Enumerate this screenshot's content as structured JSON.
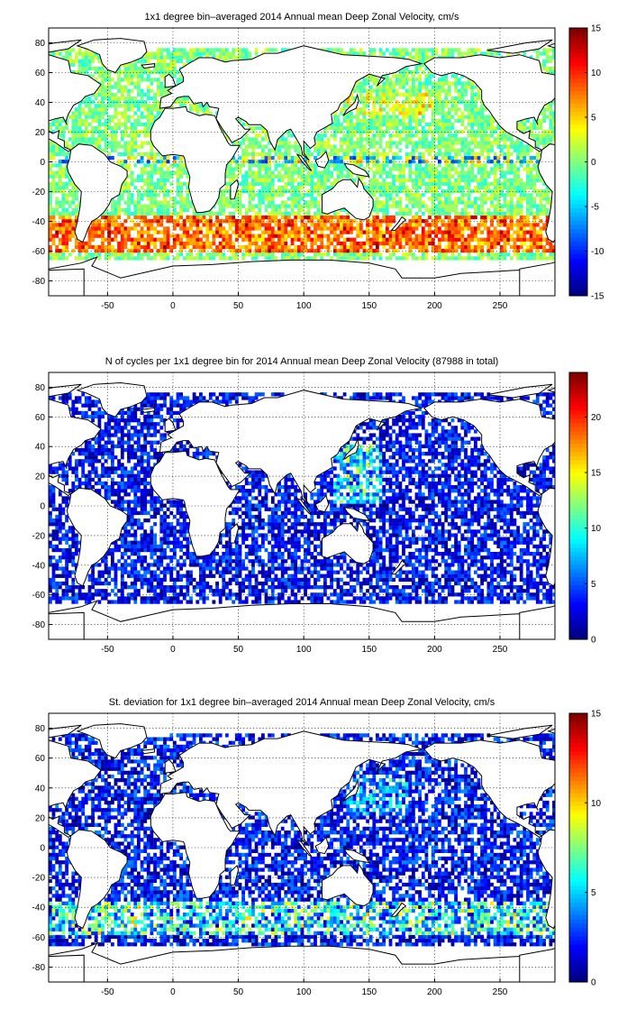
{
  "chart_data": [
    {
      "type": "heatmap",
      "title": "1x1 degree bin–averaged 2014 Annual mean Deep Zonal Velocity, cm/s",
      "xlim": [
        -95,
        292
      ],
      "ylim": [
        -90,
        90
      ],
      "xticks": [
        -50,
        0,
        50,
        100,
        150,
        200,
        250
      ],
      "yticks": [
        80,
        60,
        40,
        20,
        0,
        -20,
        -40,
        -60,
        -80
      ],
      "grid": true,
      "colorbar": {
        "colormap": "jet",
        "range": [
          -15,
          15
        ],
        "ticks": [
          15,
          10,
          5,
          0,
          -5,
          -10,
          -15
        ]
      }
    },
    {
      "type": "heatmap",
      "title": "N of cycles per 1x1 degree bin for 2014 Annual mean Deep Zonal Velocity (87988 in total)",
      "xlim": [
        -95,
        292
      ],
      "ylim": [
        -90,
        90
      ],
      "xticks": [
        -50,
        0,
        50,
        100,
        150,
        200,
        250
      ],
      "yticks": [
        80,
        60,
        40,
        20,
        0,
        -20,
        -40,
        -60,
        -80
      ],
      "grid": true,
      "colorbar": {
        "colormap": "jet",
        "range": [
          0,
          24
        ],
        "ticks": [
          20,
          15,
          10,
          5,
          0
        ]
      }
    },
    {
      "type": "heatmap",
      "title": "St. deviation for 1x1 degree bin–averaged 2014 Annual mean Deep Zonal Velocity, cm/s",
      "xlim": [
        -95,
        292
      ],
      "ylim": [
        -90,
        90
      ],
      "xticks": [
        -50,
        0,
        50,
        100,
        150,
        200,
        250
      ],
      "yticks": [
        80,
        60,
        40,
        20,
        0,
        -20,
        -40,
        -60,
        -80
      ],
      "grid": true,
      "colorbar": {
        "colormap": "jet",
        "range": [
          0,
          15
        ],
        "ticks": [
          15,
          10,
          5,
          0
        ]
      }
    }
  ]
}
